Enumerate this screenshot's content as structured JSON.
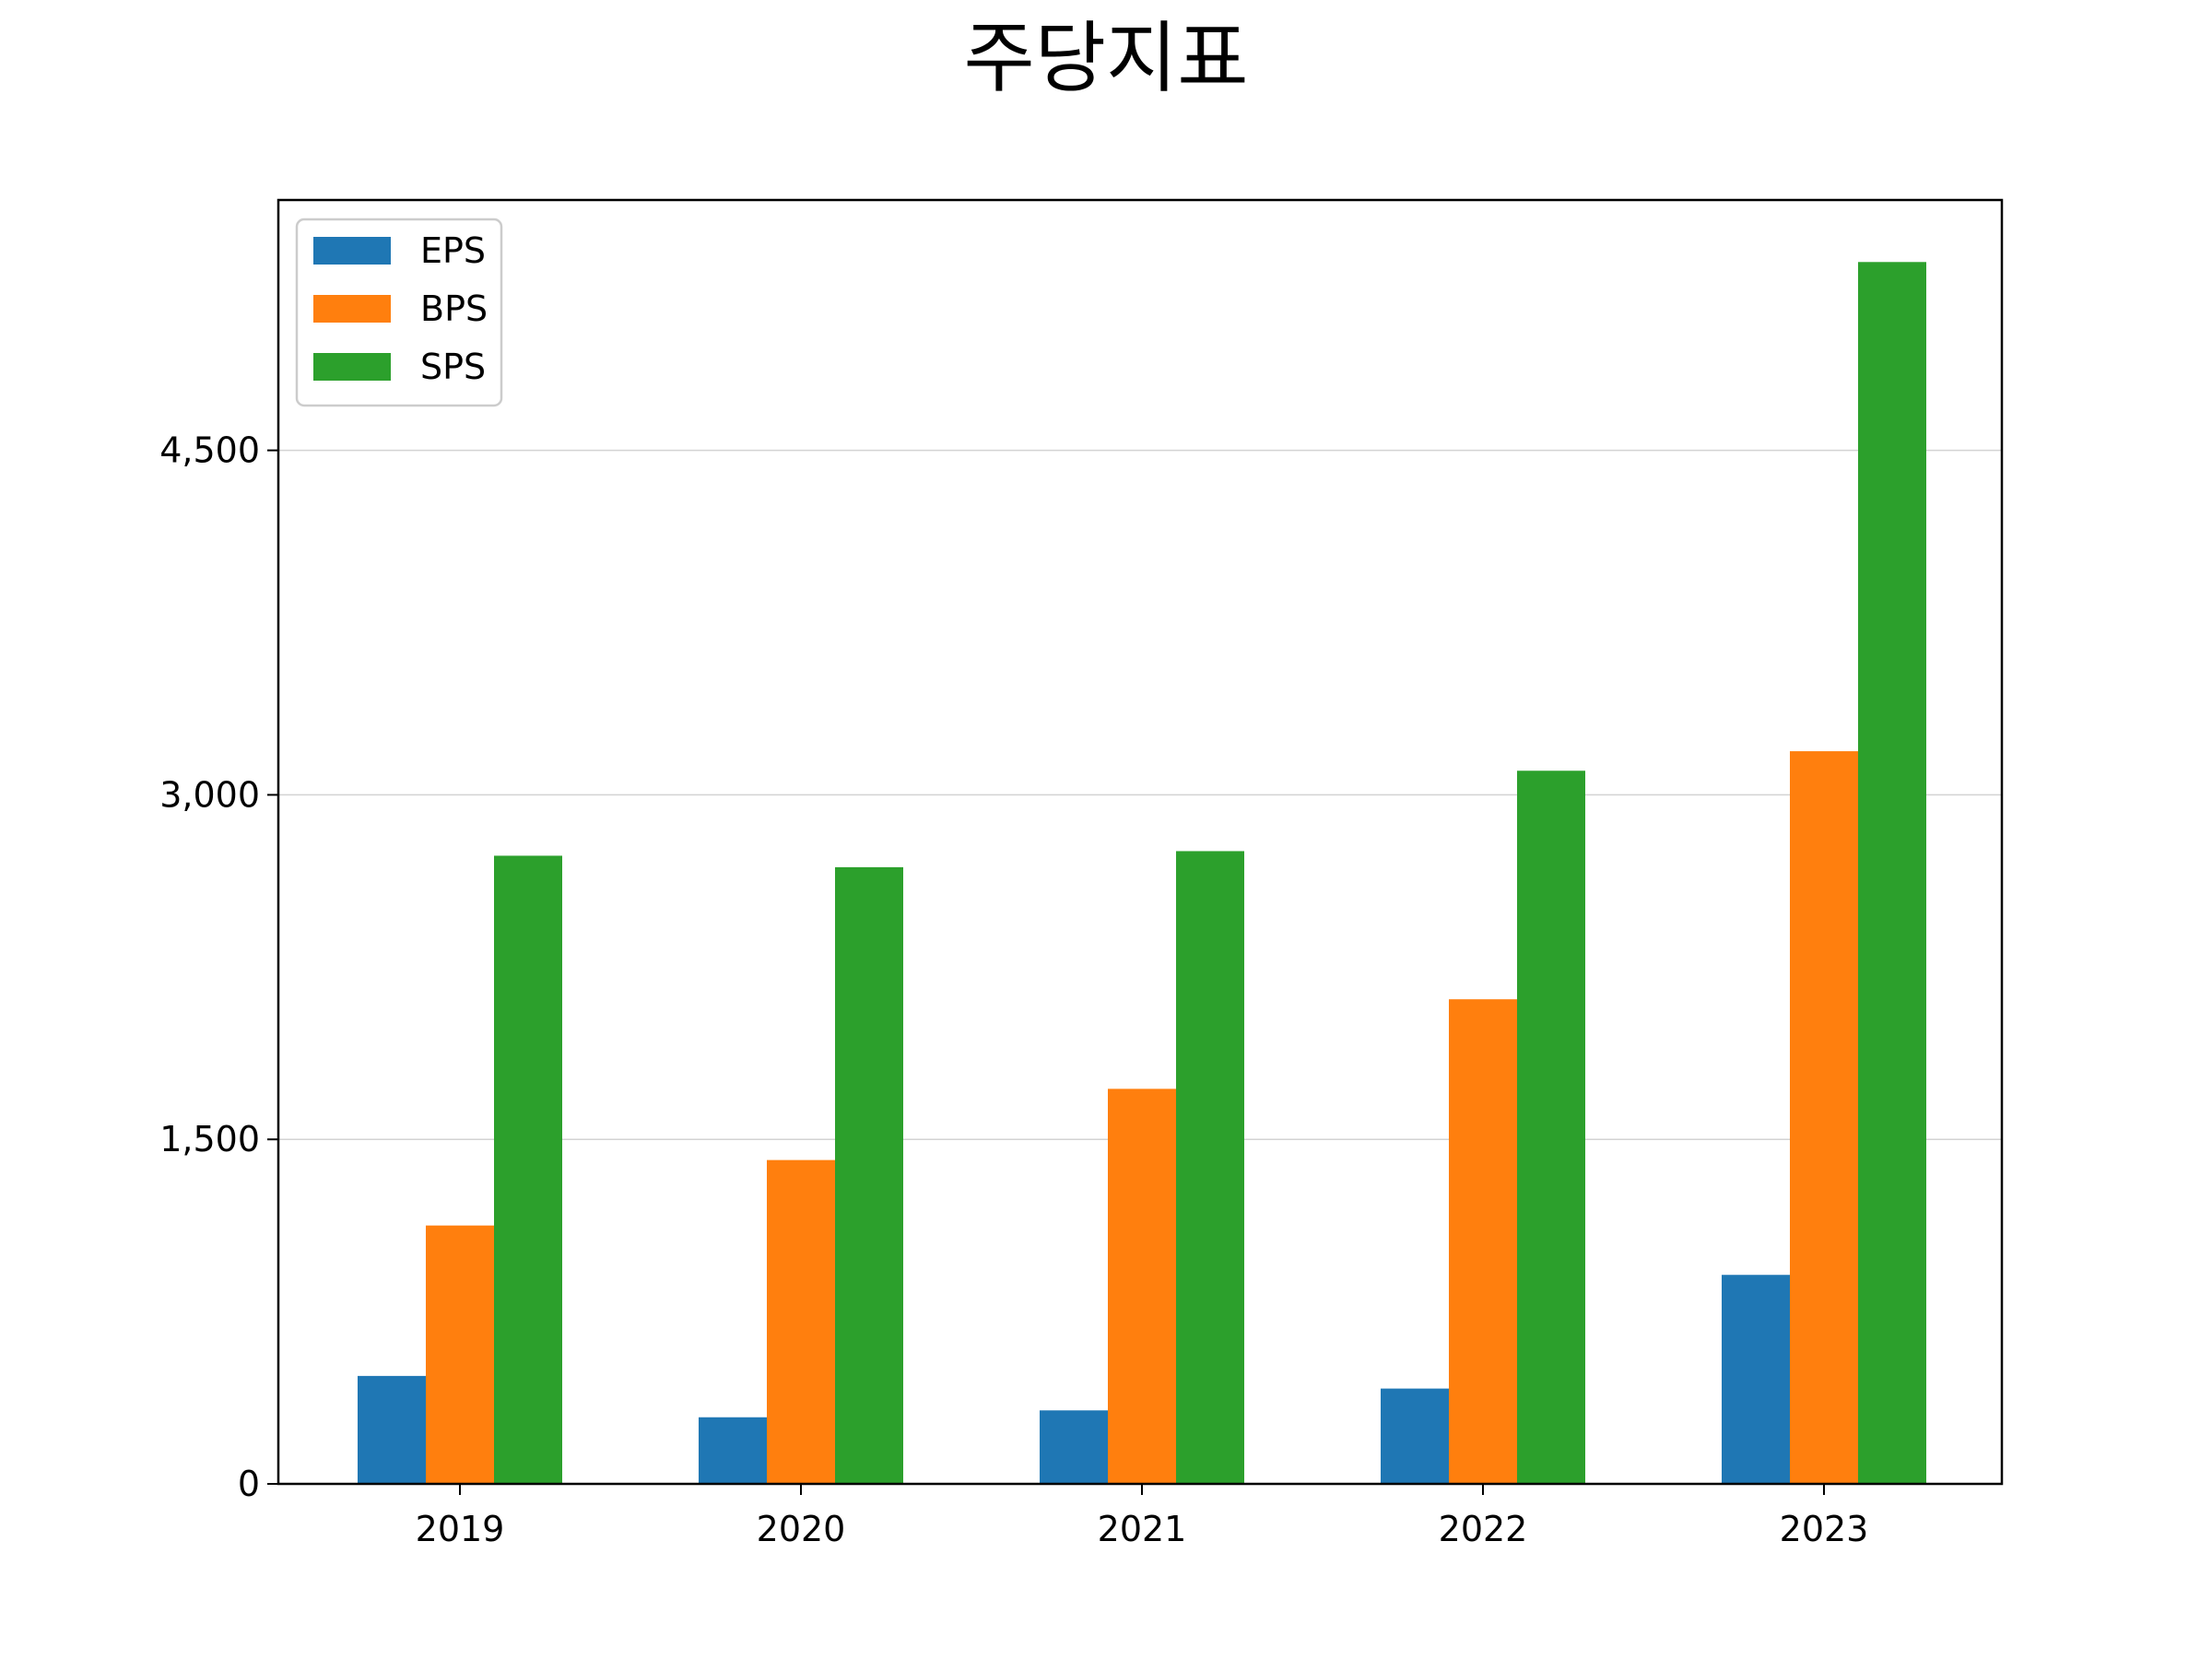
{
  "chart_data": {
    "type": "bar",
    "title": "주당지표",
    "xlabel": "",
    "ylabel": "",
    "categories": [
      "2019",
      "2020",
      "2021",
      "2022",
      "2023"
    ],
    "series": [
      {
        "name": "EPS",
        "color": "#1f77b4",
        "values": [
          470,
          290,
          320,
          415,
          910
        ]
      },
      {
        "name": "BPS",
        "color": "#ff7f0e",
        "values": [
          1125,
          1410,
          1720,
          2110,
          3190
        ]
      },
      {
        "name": "SPS",
        "color": "#2ca02c",
        "values": [
          2735,
          2685,
          2755,
          3105,
          5320
        ]
      }
    ],
    "ylim": [
      0,
      5590
    ],
    "yticks": [
      0,
      1500,
      3000,
      4500
    ],
    "ytick_labels": [
      "0",
      "1,500",
      "3,000",
      "4,500"
    ],
    "grid": "horizontal",
    "legend_position": "upper-left"
  }
}
